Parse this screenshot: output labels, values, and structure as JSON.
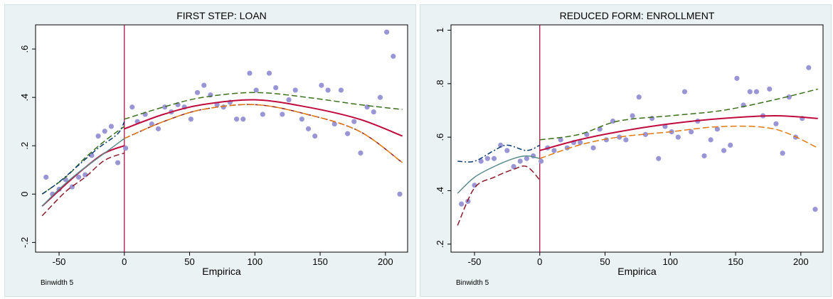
{
  "chart_data": [
    {
      "type": "scatter",
      "title": "FIRST STEP: LOAN",
      "xlabel": "Empirica",
      "ylabel": "",
      "note": "Binwidth 5",
      "xlim": [
        -68,
        217
      ],
      "ylim": [
        -0.24,
        0.7
      ],
      "xticks": [
        -50,
        0,
        50,
        100,
        150,
        200
      ],
      "xtick_labels": [
        "-50",
        "0",
        "50",
        "100",
        "150",
        "200"
      ],
      "yticks": [
        -0.2,
        0,
        0.2,
        0.4,
        0.6
      ],
      "ytick_labels": [
        "-.2",
        "0",
        ".2",
        ".4",
        ".6"
      ],
      "cutoff": 0,
      "points": [
        [
          -60,
          0.07
        ],
        [
          -55,
          0.0
        ],
        [
          -50,
          0.02
        ],
        [
          -45,
          0.06
        ],
        [
          -40,
          0.03
        ],
        [
          -35,
          0.07
        ],
        [
          -30,
          0.08
        ],
        [
          -25,
          0.16
        ],
        [
          -20,
          0.24
        ],
        [
          -15,
          0.26
        ],
        [
          -10,
          0.28
        ],
        [
          -5,
          0.13
        ],
        [
          1,
          0.19
        ],
        [
          6,
          0.36
        ],
        [
          10,
          0.3
        ],
        [
          16,
          0.33
        ],
        [
          21,
          0.29
        ],
        [
          26,
          0.27
        ],
        [
          31,
          0.36
        ],
        [
          36,
          0.34
        ],
        [
          41,
          0.37
        ],
        [
          46,
          0.36
        ],
        [
          51,
          0.31
        ],
        [
          56,
          0.42
        ],
        [
          61,
          0.45
        ],
        [
          66,
          0.41
        ],
        [
          71,
          0.37
        ],
        [
          76,
          0.36
        ],
        [
          81,
          0.38
        ],
        [
          86,
          0.31
        ],
        [
          91,
          0.31
        ],
        [
          96,
          0.5
        ],
        [
          101,
          0.43
        ],
        [
          106,
          0.33
        ],
        [
          111,
          0.5
        ],
        [
          116,
          0.44
        ],
        [
          121,
          0.33
        ],
        [
          126,
          0.39
        ],
        [
          131,
          0.43
        ],
        [
          136,
          0.31
        ],
        [
          141,
          0.27
        ],
        [
          146,
          0.24
        ],
        [
          151,
          0.45
        ],
        [
          156,
          0.43
        ],
        [
          161,
          0.29
        ],
        [
          166,
          0.43
        ],
        [
          171,
          0.25
        ],
        [
          176,
          0.3
        ],
        [
          181,
          0.17
        ],
        [
          186,
          0.36
        ],
        [
          191,
          0.34
        ],
        [
          196,
          0.4
        ],
        [
          201,
          0.67
        ],
        [
          206,
          0.57
        ],
        [
          211,
          0.0
        ]
      ],
      "series": [
        {
          "role": "fit",
          "color": "#c00a3c",
          "dash": "",
          "width": 2,
          "left": [
            [
              -63,
              -0.05
            ],
            [
              -45,
              0.04
            ],
            [
              -30,
              0.11
            ],
            [
              -15,
              0.17
            ],
            [
              0,
              0.2
            ]
          ],
          "right": [
            [
              0,
              0.27
            ],
            [
              30,
              0.33
            ],
            [
              60,
              0.37
            ],
            [
              100,
              0.39
            ],
            [
              140,
              0.36
            ],
            [
              180,
              0.31
            ],
            [
              213,
              0.24
            ]
          ]
        },
        {
          "role": "upper-ci",
          "color": "#3a6e1a",
          "dash": "8,4",
          "width": 1.5,
          "left": [
            [
              -63,
              0.0
            ],
            [
              -45,
              0.07
            ],
            [
              -30,
              0.15
            ],
            [
              -15,
              0.22
            ],
            [
              0,
              0.28
            ]
          ],
          "right": [
            [
              0,
              0.31
            ],
            [
              30,
              0.36
            ],
            [
              60,
              0.4
            ],
            [
              100,
              0.42
            ],
            [
              140,
              0.4
            ],
            [
              180,
              0.37
            ],
            [
              213,
              0.35
            ]
          ]
        },
        {
          "role": "lower-ci",
          "color": "#8b1a2a",
          "dash": "8,4",
          "width": 1.5,
          "left": [
            [
              -63,
              -0.09
            ],
            [
              -45,
              0.01
            ],
            [
              -30,
              0.07
            ],
            [
              -15,
              0.14
            ],
            [
              0,
              0.17
            ]
          ],
          "right": [
            [
              0,
              0.23
            ],
            [
              30,
              0.3
            ],
            [
              60,
              0.35
            ],
            [
              100,
              0.37
            ],
            [
              140,
              0.33
            ],
            [
              180,
              0.26
            ],
            [
              213,
              0.13
            ]
          ]
        },
        {
          "role": "local-upper",
          "color": "#0a3a6e",
          "dash": "7,3,2,3",
          "width": 1.5,
          "left": [
            [
              -63,
              0.0
            ],
            [
              -50,
              0.05
            ],
            [
              -35,
              0.12
            ],
            [
              -20,
              0.19
            ],
            [
              -5,
              0.25
            ],
            [
              0,
              0.3
            ]
          ],
          "right": []
        },
        {
          "role": "local-fit",
          "color": "#5a8a8a",
          "dash": "",
          "width": 1.5,
          "left": [
            [
              -63,
              -0.05
            ],
            [
              -50,
              0.02
            ],
            [
              -35,
              0.09
            ],
            [
              -20,
              0.15
            ],
            [
              -5,
              0.21
            ],
            [
              0,
              0.23
            ]
          ],
          "right": []
        },
        {
          "role": "right-lower",
          "color": "#e07a10",
          "dash": "9,4",
          "width": 1.5,
          "left": [],
          "right": [
            [
              0,
              0.23
            ],
            [
              30,
              0.3
            ],
            [
              60,
              0.35
            ],
            [
              100,
              0.37
            ],
            [
              140,
              0.33
            ],
            [
              180,
              0.26
            ],
            [
              213,
              0.13
            ]
          ]
        }
      ]
    },
    {
      "type": "scatter",
      "title": "REDUCED FORM: ENROLLMENT",
      "xlabel": "Empirica",
      "ylabel": "",
      "note": "Binwidth 5",
      "xlim": [
        -68,
        217
      ],
      "ylim": [
        0.17,
        1.02
      ],
      "xticks": [
        -50,
        0,
        50,
        100,
        150,
        200
      ],
      "xtick_labels": [
        "-50",
        "0",
        "50",
        "100",
        "150",
        "200"
      ],
      "yticks": [
        0.2,
        0.4,
        0.6,
        0.8,
        1.0
      ],
      "ytick_labels": [
        ".2",
        ".4",
        ".6",
        ".8",
        "1"
      ],
      "cutoff": 0,
      "points": [
        [
          -60,
          0.35
        ],
        [
          -55,
          0.36
        ],
        [
          -50,
          0.42
        ],
        [
          -45,
          0.51
        ],
        [
          -40,
          0.52
        ],
        [
          -35,
          0.52
        ],
        [
          -30,
          0.57
        ],
        [
          -25,
          0.55
        ],
        [
          -20,
          0.49
        ],
        [
          -15,
          0.51
        ],
        [
          -10,
          0.52
        ],
        [
          -5,
          0.53
        ],
        [
          1,
          0.51
        ],
        [
          6,
          0.56
        ],
        [
          11,
          0.55
        ],
        [
          16,
          0.59
        ],
        [
          21,
          0.56
        ],
        [
          26,
          0.58
        ],
        [
          31,
          0.58
        ],
        [
          36,
          0.61
        ],
        [
          41,
          0.56
        ],
        [
          46,
          0.63
        ],
        [
          51,
          0.59
        ],
        [
          56,
          0.66
        ],
        [
          61,
          0.6
        ],
        [
          66,
          0.59
        ],
        [
          71,
          0.68
        ],
        [
          76,
          0.75
        ],
        [
          81,
          0.61
        ],
        [
          86,
          0.67
        ],
        [
          91,
          0.52
        ],
        [
          96,
          0.64
        ],
        [
          101,
          0.62
        ],
        [
          106,
          0.6
        ],
        [
          111,
          0.77
        ],
        [
          116,
          0.62
        ],
        [
          121,
          0.66
        ],
        [
          126,
          0.53
        ],
        [
          131,
          0.59
        ],
        [
          136,
          0.63
        ],
        [
          141,
          0.55
        ],
        [
          146,
          0.57
        ],
        [
          151,
          0.82
        ],
        [
          156,
          0.72
        ],
        [
          161,
          0.77
        ],
        [
          166,
          0.77
        ],
        [
          171,
          0.68
        ],
        [
          176,
          0.78
        ],
        [
          181,
          0.65
        ],
        [
          186,
          0.54
        ],
        [
          191,
          0.75
        ],
        [
          196,
          0.6
        ],
        [
          201,
          0.67
        ],
        [
          206,
          0.86
        ],
        [
          211,
          0.33
        ]
      ],
      "series": [
        {
          "role": "fit",
          "color": "#c00a3c",
          "dash": "",
          "width": 2,
          "left": [],
          "right": [
            [
              0,
              0.55
            ],
            [
              30,
              0.59
            ],
            [
              60,
              0.62
            ],
            [
              100,
              0.65
            ],
            [
              140,
              0.67
            ],
            [
              180,
              0.68
            ],
            [
              213,
              0.67
            ]
          ]
        },
        {
          "role": "upper-ci",
          "color": "#3a6e1a",
          "dash": "8,4",
          "width": 1.5,
          "left": [],
          "right": [
            [
              0,
              0.59
            ],
            [
              30,
              0.61
            ],
            [
              60,
              0.66
            ],
            [
              100,
              0.68
            ],
            [
              140,
              0.7
            ],
            [
              180,
              0.74
            ],
            [
              213,
              0.78
            ]
          ]
        },
        {
          "role": "right-lower",
          "color": "#e07a10",
          "dash": "9,4",
          "width": 1.5,
          "left": [],
          "right": [
            [
              0,
              0.52
            ],
            [
              30,
              0.57
            ],
            [
              60,
              0.6
            ],
            [
              100,
              0.62
            ],
            [
              140,
              0.64
            ],
            [
              180,
              0.63
            ],
            [
              213,
              0.56
            ]
          ]
        },
        {
          "role": "local-upper",
          "color": "#0a3a6e",
          "dash": "7,3,2,3",
          "width": 1.5,
          "left": [
            [
              -63,
              0.51
            ],
            [
              -50,
              0.51
            ],
            [
              -35,
              0.55
            ],
            [
              -25,
              0.57
            ],
            [
              -10,
              0.55
            ],
            [
              0,
              0.57
            ]
          ],
          "right": []
        },
        {
          "role": "local-fit",
          "color": "#5a8a8a",
          "dash": "",
          "width": 1.5,
          "left": [
            [
              -63,
              0.39
            ],
            [
              -50,
              0.45
            ],
            [
              -35,
              0.49
            ],
            [
              -20,
              0.52
            ],
            [
              -10,
              0.53
            ],
            [
              0,
              0.52
            ]
          ],
          "right": []
        },
        {
          "role": "lower-ci",
          "color": "#8b1a2a",
          "dash": "8,4",
          "width": 1.5,
          "left": [
            [
              -63,
              0.27
            ],
            [
              -50,
              0.41
            ],
            [
              -35,
              0.45
            ],
            [
              -20,
              0.48
            ],
            [
              -10,
              0.49
            ],
            [
              0,
              0.44
            ]
          ],
          "right": []
        }
      ]
    }
  ],
  "colors": {
    "panel_background": "#eaf2f3",
    "plot_background": "#ffffff",
    "cutoff_line": "#a0003a",
    "points": "#9a96d6"
  }
}
